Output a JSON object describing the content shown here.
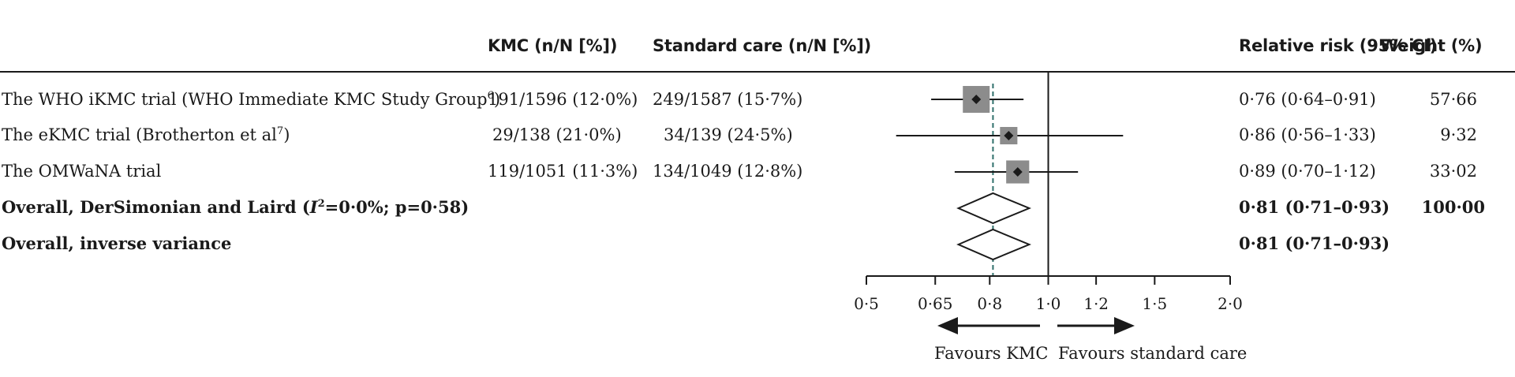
{
  "headers": {
    "kmc": "KMC (n/N [%])",
    "standard": "Standard care (n/N [%])",
    "rr": "Relative risk (95% CI)",
    "weight": "Weight (%)"
  },
  "rows": [
    {
      "label": "The WHO iKMC trial (WHO Immediate KMC Study Group",
      "sup": "6",
      "label_end": ")",
      "kmc": "191/1596 (12·0%)",
      "std": "249/1587 (15·7%)",
      "rr_text": "0·76 (0·64–0·91)",
      "weight": "57·66"
    },
    {
      "label": "The eKMC trial (Brotherton et al",
      "sup": "7",
      "label_end": ")",
      "kmc": "29/138 (21·0%)",
      "std": "34/139 (24·5%)",
      "rr_text": "0·86 (0·56–1·33)",
      "weight": "9·32"
    },
    {
      "label": "The OMWaNA trial",
      "sup": "",
      "label_end": "",
      "kmc": "119/1051 (11·3%)",
      "std": "134/1049 (12·8%)",
      "rr_text": "0·89 (0·70–1·12)",
      "weight": "33·02"
    }
  ],
  "overall": [
    {
      "label_pre": "Overall, DerSimonian and Laird (",
      "label_i": "I",
      "label_sup": "2",
      "label_post": "=0·0%; p=0·58)",
      "rr_text": "0·81 (0·71–0·93)",
      "weight": "100·00"
    },
    {
      "label_pre": "Overall, inverse variance",
      "label_i": "",
      "label_sup": "",
      "label_post": "",
      "rr_text": "0·81 (0·71–0·93)",
      "weight": ""
    }
  ],
  "favours": {
    "left": "Favours KMC",
    "right": "Favours standard care"
  },
  "chart_data": {
    "type": "forest",
    "x_scale": "log",
    "xlim": [
      0.5,
      2.0
    ],
    "ticks": [
      {
        "value": 0.5,
        "label": "0·5"
      },
      {
        "value": 0.65,
        "label": "0·65"
      },
      {
        "value": 0.8,
        "label": "0·8"
      },
      {
        "value": 1.0,
        "label": "1·0"
      },
      {
        "value": 1.2,
        "label": "1·2"
      },
      {
        "value": 1.5,
        "label": "1·5"
      },
      {
        "value": 2.0,
        "label": "2·0"
      }
    ],
    "null_line": 1.0,
    "pooled_line": 0.81,
    "studies": [
      {
        "name": "The WHO iKMC trial",
        "rr": 0.76,
        "lo": 0.64,
        "hi": 0.91,
        "weight": 57.66
      },
      {
        "name": "The eKMC trial",
        "rr": 0.86,
        "lo": 0.56,
        "hi": 1.33,
        "weight": 9.32
      },
      {
        "name": "The OMWaNA trial",
        "rr": 0.89,
        "lo": 0.7,
        "hi": 1.12,
        "weight": 33.02
      }
    ],
    "pooled": [
      {
        "name": "Overall, DerSimonian and Laird",
        "rr": 0.81,
        "lo": 0.71,
        "hi": 0.93
      },
      {
        "name": "Overall, inverse variance",
        "rr": 0.81,
        "lo": 0.71,
        "hi": 0.93
      }
    ],
    "colors": {
      "line": "#1a1a1a",
      "box": "#8c8c8c",
      "dashed": "#2e6f6a"
    }
  }
}
